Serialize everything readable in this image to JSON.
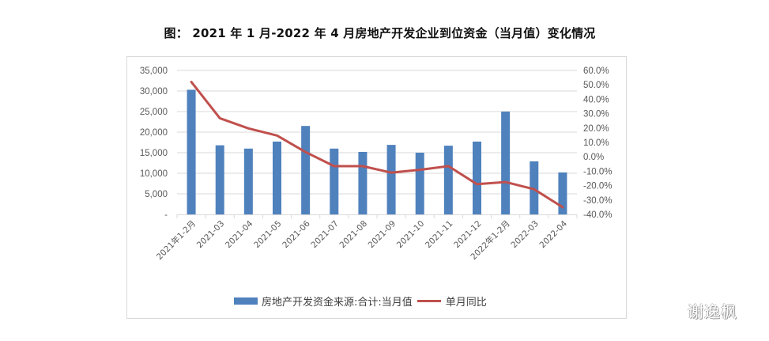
{
  "title": "图：  2021 年 1 月-2022 年 4 月房地产开发企业到位资金（当月值）变化情况",
  "watermark": "谢逸枫",
  "legend": {
    "bar_label": "房地产开发资金来源:合计:当月值",
    "line_label": "单月同比"
  },
  "colors": {
    "bar": "#4f81bd",
    "line": "#c0504d",
    "grid": "#d9d9d9",
    "axis_text": "#595959"
  },
  "chart_data": {
    "type": "bar",
    "combo": "bar+line (dual axis)",
    "title": "图：  2021 年 1 月-2022 年 4 月房地产开发企业到位资金（当月值）变化情况",
    "xlabel": "",
    "ylabel": "",
    "categories": [
      "2021年1-2月",
      "2021-03",
      "2021-04",
      "2021-05",
      "2021-06",
      "2021-07",
      "2021-08",
      "2021-09",
      "2021-10",
      "2021-11",
      "2021-12",
      "2022年1-2月",
      "2022-03",
      "2022-04"
    ],
    "series": [
      {
        "name": "房地产开发资金来源:合计:当月值",
        "type": "bar",
        "axis": "left",
        "values": [
          30300,
          16800,
          16000,
          17700,
          21500,
          16000,
          15200,
          16900,
          15000,
          16700,
          17700,
          25000,
          12900,
          10200
        ]
      },
      {
        "name": "单月同比",
        "type": "line",
        "axis": "right",
        "unit": "%",
        "values": [
          52.0,
          26.8,
          19.7,
          14.8,
          3.3,
          -6.5,
          -6.5,
          -11.0,
          -9.0,
          -6.5,
          -19.0,
          -17.5,
          -22.5,
          -35.0
        ]
      }
    ],
    "ylim": [
      0,
      35000
    ],
    "y_ticks": [
      "-",
      "5,000",
      "10,000",
      "15,000",
      "20,000",
      "25,000",
      "30,000",
      "35,000"
    ],
    "y2lim": [
      -40,
      60
    ],
    "y2_ticks": [
      "-40.0%",
      "-30.0%",
      "-20.0%",
      "-10.0%",
      "0.0%",
      "10.0%",
      "20.0%",
      "30.0%",
      "40.0%",
      "50.0%",
      "60.0%"
    ],
    "grid": true,
    "legend_position": "bottom"
  }
}
